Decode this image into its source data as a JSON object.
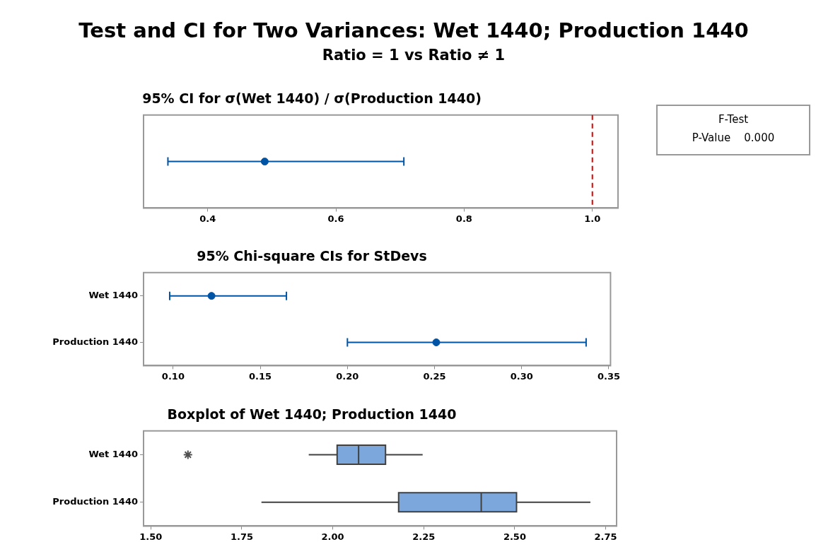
{
  "chart_data": [
    {
      "type": "other",
      "title": "Test and CI for Two Variances: Wet 1440; Production 1440",
      "subtitle": "Ratio = 1 vs Ratio ≠ 1"
    },
    {
      "type": "scatter",
      "orientation": "horizontal",
      "title": "95% CI for σ(Wet 1440) / σ(Production 1440)",
      "categories": [
        null
      ],
      "values": [
        0.489
      ],
      "errors": [
        [
          0.338,
          0.706
        ]
      ],
      "color": "#0054a6",
      "marker": "circle",
      "xlim": [
        0.3,
        1.04
      ],
      "xticks": [
        {
          "value": 0.4,
          "label": "0.4"
        },
        {
          "value": 0.6,
          "label": "0.6"
        },
        {
          "value": 0.8,
          "label": "0.8"
        },
        {
          "value": 1.0,
          "label": "1.0"
        }
      ],
      "ref_lines": [
        {
          "axis": "x",
          "value": 1.0,
          "color": "#e00000",
          "line_style": "dashed"
        }
      ]
    },
    {
      "type": "scatter",
      "orientation": "horizontal",
      "title": "95% Chi-square CIs for StDevs",
      "categories": [
        "Wet 1440",
        "Production 1440"
      ],
      "values": [
        0.122,
        0.251
      ],
      "errors": [
        [
          0.098,
          0.165
        ],
        [
          0.2,
          0.337
        ]
      ],
      "color": "#0054a6",
      "marker": "circle",
      "xlim": [
        0.083,
        0.351
      ],
      "xticks": [
        {
          "value": 0.1,
          "label": "0.10"
        },
        {
          "value": 0.15,
          "label": "0.15"
        },
        {
          "value": 0.2,
          "label": "0.20"
        },
        {
          "value": 0.25,
          "label": "0.25"
        },
        {
          "value": 0.3,
          "label": "0.30"
        },
        {
          "value": 0.35,
          "label": "0.35"
        }
      ]
    },
    {
      "type": "box",
      "orientation": "horizontal",
      "title": "Boxplot of Wet 1440; Production 1440",
      "categories": [
        "Wet 1440",
        "Production 1440"
      ],
      "color": "#7ba7dc",
      "boxes": [
        {
          "low": 1.934,
          "q1": 2.012,
          "median": 2.071,
          "q3": 2.145,
          "high": 2.247,
          "outliers": [
            1.602
          ]
        },
        {
          "low": 1.804,
          "q1": 2.181,
          "median": 2.408,
          "q3": 2.505,
          "high": 2.708
        }
      ],
      "xlim": [
        1.48,
        2.78
      ],
      "xticks": [
        {
          "value": 1.5,
          "label": "1.50"
        },
        {
          "value": 1.75,
          "label": "1.75"
        },
        {
          "value": 2.0,
          "label": "2.00"
        },
        {
          "value": 2.25,
          "label": "2.25"
        },
        {
          "value": 2.5,
          "label": "2.50"
        },
        {
          "value": 2.75,
          "label": "2.75"
        }
      ]
    },
    {
      "type": "other",
      "title": "F-Test",
      "annotations": [
        "P-Value    0.000"
      ]
    }
  ]
}
